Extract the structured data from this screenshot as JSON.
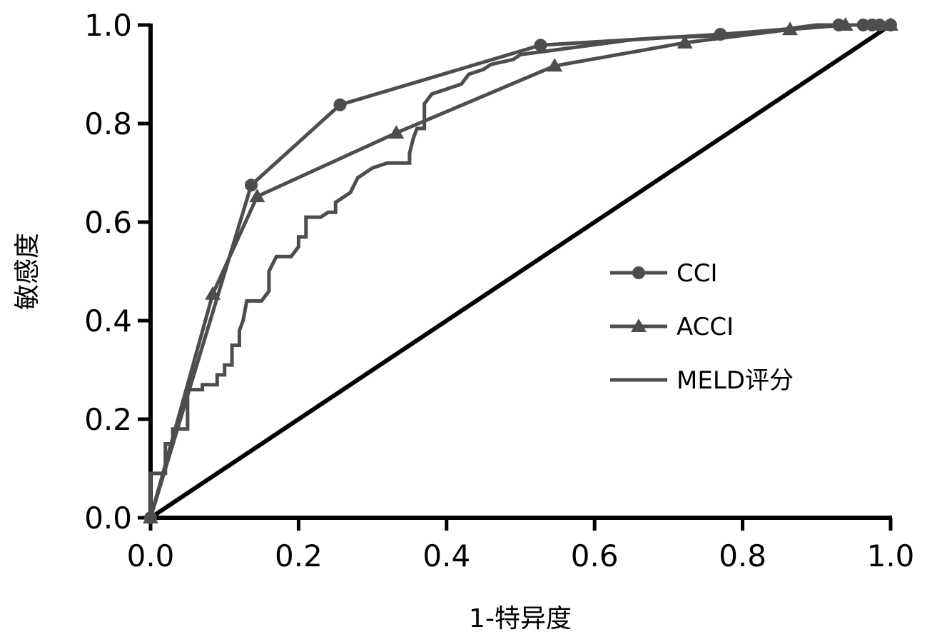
{
  "chart_data": {
    "type": "line",
    "title": "",
    "xlabel": "1-特异度",
    "ylabel": "敏感度",
    "xlim": [
      0,
      1
    ],
    "ylim": [
      0,
      1
    ],
    "xticks": [
      "0.0",
      "0.2",
      "0.4",
      "0.6",
      "0.8",
      "1.0"
    ],
    "yticks": [
      "0.0",
      "0.2",
      "0.4",
      "0.6",
      "0.8",
      "1.0"
    ],
    "grid": false,
    "legend_placement": "center-right",
    "colors": {
      "series": "#4d4d4d",
      "reference": "#000000"
    },
    "series": [
      {
        "name": "CCI",
        "marker": "circle",
        "stepped": false,
        "x": [
          0,
          0.136,
          0.256,
          0.527,
          0.77,
          0.93,
          0.963,
          0.975,
          0.985,
          1.0
        ],
        "y": [
          0,
          0.675,
          0.838,
          0.959,
          0.981,
          1.0,
          1.0,
          1.0,
          1.0,
          1.0
        ]
      },
      {
        "name": "ACCI",
        "marker": "triangle",
        "stepped": false,
        "x": [
          0,
          0.084,
          0.144,
          0.332,
          0.546,
          0.722,
          0.864,
          0.939,
          1.0
        ],
        "y": [
          0,
          0.454,
          0.652,
          0.781,
          0.917,
          0.964,
          0.991,
          1.0,
          1.0
        ]
      },
      {
        "name": "MELD评分",
        "marker": "none",
        "stepped": true,
        "x": [
          0,
          0,
          0.02,
          0.02,
          0.03,
          0.03,
          0.05,
          0.05,
          0.07,
          0.07,
          0.09,
          0.09,
          0.1,
          0.1,
          0.11,
          0.11,
          0.12,
          0.12,
          0.125,
          0.13,
          0.15,
          0.155,
          0.16,
          0.16,
          0.17,
          0.19,
          0.2,
          0.2,
          0.21,
          0.21,
          0.23,
          0.24,
          0.25,
          0.25,
          0.27,
          0.28,
          0.29,
          0.3,
          0.32,
          0.35,
          0.35,
          0.355,
          0.36,
          0.37,
          0.37,
          0.38,
          0.4,
          0.42,
          0.43,
          0.45,
          0.46,
          0.49,
          0.5,
          0.55,
          0.6,
          0.65,
          0.7,
          0.8,
          0.85,
          0.9,
          1.0
        ],
        "y": [
          0,
          0.09,
          0.09,
          0.15,
          0.15,
          0.18,
          0.18,
          0.26,
          0.26,
          0.27,
          0.27,
          0.29,
          0.29,
          0.31,
          0.31,
          0.35,
          0.35,
          0.38,
          0.4,
          0.44,
          0.44,
          0.45,
          0.46,
          0.5,
          0.53,
          0.53,
          0.55,
          0.57,
          0.57,
          0.61,
          0.61,
          0.62,
          0.62,
          0.64,
          0.66,
          0.69,
          0.7,
          0.71,
          0.72,
          0.72,
          0.74,
          0.77,
          0.79,
          0.79,
          0.84,
          0.86,
          0.87,
          0.88,
          0.9,
          0.91,
          0.92,
          0.93,
          0.94,
          0.95,
          0.96,
          0.97,
          0.975,
          0.98,
          0.99,
          1.0,
          1.0
        ]
      },
      {
        "name": "reference",
        "marker": "none",
        "stepped": false,
        "legend": false,
        "x": [
          0,
          1
        ],
        "y": [
          0,
          1
        ]
      }
    ]
  }
}
